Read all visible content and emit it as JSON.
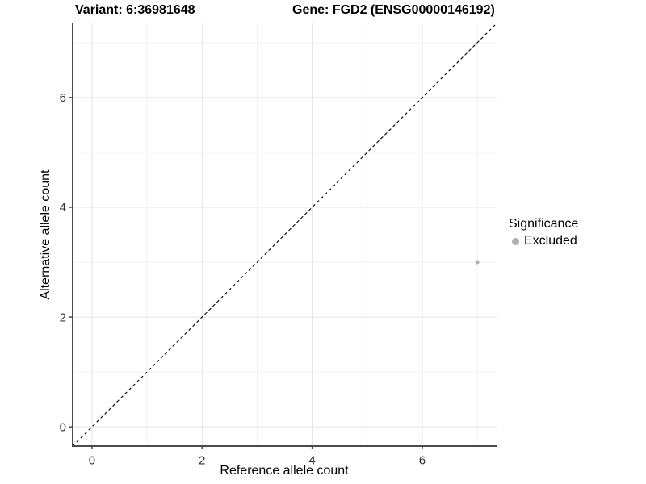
{
  "header": {
    "title_left": "Variant: 6:36981648",
    "title_right": "Gene: FGD2 (ENSG00000146192)"
  },
  "chart_data": {
    "type": "scatter",
    "title": "Variant: 6:36981648   Gene: FGD2 (ENSG00000146192)",
    "xlabel": "Reference allele count",
    "ylabel": "Alternative allele count",
    "xlim": [
      -0.35,
      7.35
    ],
    "ylim": [
      -0.35,
      7.35
    ],
    "x_major_ticks": [
      0,
      2,
      4,
      6
    ],
    "y_major_ticks": [
      0,
      2,
      4,
      6
    ],
    "x_minor_gridlines": [
      1,
      3,
      5,
      7
    ],
    "y_minor_gridlines": [
      1,
      3,
      5,
      7
    ],
    "grid": true,
    "identity_line": {
      "style": "dashed",
      "equation": "y = x",
      "from": -0.35,
      "to": 7.35
    },
    "series": [
      {
        "name": "Excluded",
        "color": "#b0b0b0",
        "points": [
          {
            "x": 7,
            "y": 3
          }
        ]
      }
    ],
    "legend": {
      "title": "Significance",
      "position": "right",
      "items": [
        {
          "label": "Excluded",
          "color": "#b0b0b0"
        }
      ]
    },
    "colors": {
      "axis_line": "#4a4a4a",
      "tick_label": "#333333",
      "grid_major": "#e4e4e4",
      "grid_minor": "#f1f1f1",
      "identity_line": "#111111",
      "background": "#ffffff"
    }
  }
}
